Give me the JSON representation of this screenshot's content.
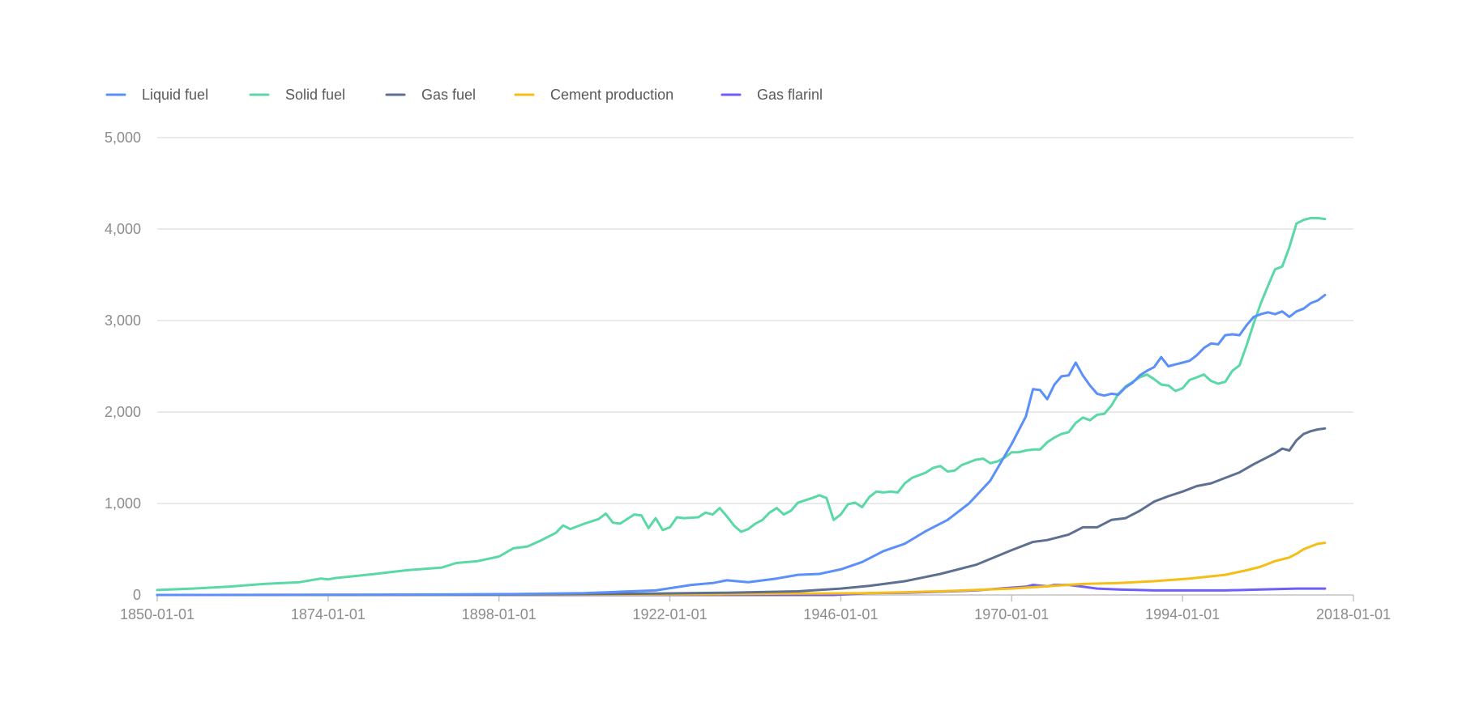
{
  "chart_data": {
    "type": "line",
    "title": "",
    "xlabel": "",
    "ylabel": "",
    "grid": true,
    "legend_position": "top-left",
    "xlim": [
      "1850-01-01",
      "2018-01-01"
    ],
    "ylim": [
      0,
      5000
    ],
    "x_ticks": [
      "1850-01-01",
      "1874-01-01",
      "1898-01-01",
      "1922-01-01",
      "1946-01-01",
      "1970-01-01",
      "1994-01-01",
      "2018-01-01"
    ],
    "y_ticks": [
      0,
      1000,
      2000,
      3000,
      4000,
      5000
    ],
    "y_tick_labels": [
      "0",
      "1,000",
      "2,000",
      "3,000",
      "4,000",
      "5,000"
    ],
    "series": [
      {
        "name": "Liquid fuel",
        "color": "#5b8ff9",
        "points": [
          [
            "1850-01-01",
            0
          ],
          [
            "1870-01-01",
            1
          ],
          [
            "1880-01-01",
            3
          ],
          [
            "1890-01-01",
            5
          ],
          [
            "1900-01-01",
            10
          ],
          [
            "1910-01-01",
            20
          ],
          [
            "1915-01-01",
            35
          ],
          [
            "1920-01-01",
            50
          ],
          [
            "1925-01-01",
            110
          ],
          [
            "1928-01-01",
            130
          ],
          [
            "1930-01-01",
            160
          ],
          [
            "1933-01-01",
            140
          ],
          [
            "1937-01-01",
            180
          ],
          [
            "1940-01-01",
            220
          ],
          [
            "1943-01-01",
            230
          ],
          [
            "1946-01-01",
            280
          ],
          [
            "1949-01-01",
            360
          ],
          [
            "1952-01-01",
            480
          ],
          [
            "1955-01-01",
            560
          ],
          [
            "1958-01-01",
            700
          ],
          [
            "1961-01-01",
            820
          ],
          [
            "1964-01-01",
            1000
          ],
          [
            "1967-01-01",
            1250
          ],
          [
            "1970-01-01",
            1650
          ],
          [
            "1972-01-01",
            1950
          ],
          [
            "1973-01-01",
            2250
          ],
          [
            "1974-01-01",
            2240
          ],
          [
            "1975-01-01",
            2140
          ],
          [
            "1976-01-01",
            2300
          ],
          [
            "1977-01-01",
            2390
          ],
          [
            "1978-01-01",
            2400
          ],
          [
            "1979-01-01",
            2540
          ],
          [
            "1980-01-01",
            2400
          ],
          [
            "1981-01-01",
            2290
          ],
          [
            "1982-01-01",
            2200
          ],
          [
            "1983-01-01",
            2180
          ],
          [
            "1984-01-01",
            2200
          ],
          [
            "1985-01-01",
            2190
          ],
          [
            "1986-01-01",
            2270
          ],
          [
            "1987-01-01",
            2320
          ],
          [
            "1988-01-01",
            2400
          ],
          [
            "1989-01-01",
            2450
          ],
          [
            "1990-01-01",
            2490
          ],
          [
            "1991-01-01",
            2600
          ],
          [
            "1992-01-01",
            2500
          ],
          [
            "1993-01-01",
            2520
          ],
          [
            "1994-01-01",
            2540
          ],
          [
            "1995-01-01",
            2560
          ],
          [
            "1996-01-01",
            2620
          ],
          [
            "1997-01-01",
            2700
          ],
          [
            "1998-01-01",
            2750
          ],
          [
            "1999-01-01",
            2740
          ],
          [
            "2000-01-01",
            2840
          ],
          [
            "2001-01-01",
            2850
          ],
          [
            "2002-01-01",
            2840
          ],
          [
            "2003-01-01",
            2950
          ],
          [
            "2004-01-01",
            3040
          ],
          [
            "2005-01-01",
            3070
          ],
          [
            "2006-01-01",
            3090
          ],
          [
            "2007-01-01",
            3070
          ],
          [
            "2008-01-01",
            3100
          ],
          [
            "2009-01-01",
            3040
          ],
          [
            "2010-01-01",
            3100
          ],
          [
            "2011-01-01",
            3130
          ],
          [
            "2012-01-01",
            3190
          ],
          [
            "2013-01-01",
            3220
          ],
          [
            "2014-01-01",
            3280
          ]
        ]
      },
      {
        "name": "Solid fuel",
        "color": "#5ad8a6",
        "points": [
          [
            "1850-01-01",
            54
          ],
          [
            "1855-01-01",
            70
          ],
          [
            "1860-01-01",
            90
          ],
          [
            "1865-01-01",
            120
          ],
          [
            "1870-01-01",
            140
          ],
          [
            "1873-01-01",
            180
          ],
          [
            "1874-01-01",
            170
          ],
          [
            "1875-01-01",
            185
          ],
          [
            "1880-01-01",
            225
          ],
          [
            "1885-01-01",
            270
          ],
          [
            "1890-01-01",
            300
          ],
          [
            "1892-01-01",
            350
          ],
          [
            "1895-01-01",
            370
          ],
          [
            "1898-01-01",
            420
          ],
          [
            "1900-01-01",
            510
          ],
          [
            "1902-01-01",
            530
          ],
          [
            "1904-01-01",
            600
          ],
          [
            "1906-01-01",
            680
          ],
          [
            "1907-01-01",
            760
          ],
          [
            "1908-01-01",
            720
          ],
          [
            "1910-01-01",
            780
          ],
          [
            "1912-01-01",
            830
          ],
          [
            "1913-01-01",
            890
          ],
          [
            "1914-01-01",
            790
          ],
          [
            "1915-01-01",
            780
          ],
          [
            "1917-01-01",
            880
          ],
          [
            "1918-01-01",
            870
          ],
          [
            "1919-01-01",
            730
          ],
          [
            "1920-01-01",
            840
          ],
          [
            "1921-01-01",
            710
          ],
          [
            "1922-01-01",
            740
          ],
          [
            "1923-01-01",
            850
          ],
          [
            "1924-01-01",
            840
          ],
          [
            "1926-01-01",
            850
          ],
          [
            "1927-01-01",
            900
          ],
          [
            "1928-01-01",
            880
          ],
          [
            "1929-01-01",
            950
          ],
          [
            "1930-01-01",
            860
          ],
          [
            "1931-01-01",
            760
          ],
          [
            "1932-01-01",
            690
          ],
          [
            "1933-01-01",
            720
          ],
          [
            "1934-01-01",
            780
          ],
          [
            "1935-01-01",
            820
          ],
          [
            "1936-01-01",
            900
          ],
          [
            "1937-01-01",
            950
          ],
          [
            "1938-01-01",
            880
          ],
          [
            "1939-01-01",
            920
          ],
          [
            "1940-01-01",
            1010
          ],
          [
            "1942-01-01",
            1060
          ],
          [
            "1943-01-01",
            1090
          ],
          [
            "1944-01-01",
            1060
          ],
          [
            "1945-01-01",
            820
          ],
          [
            "1946-01-01",
            880
          ],
          [
            "1947-01-01",
            990
          ],
          [
            "1948-01-01",
            1010
          ],
          [
            "1949-01-01",
            960
          ],
          [
            "1950-01-01",
            1070
          ],
          [
            "1951-01-01",
            1130
          ],
          [
            "1952-01-01",
            1120
          ],
          [
            "1953-01-01",
            1130
          ],
          [
            "1954-01-01",
            1120
          ],
          [
            "1955-01-01",
            1220
          ],
          [
            "1956-01-01",
            1280
          ],
          [
            "1957-01-01",
            1310
          ],
          [
            "1958-01-01",
            1340
          ],
          [
            "1959-01-01",
            1390
          ],
          [
            "1960-01-01",
            1410
          ],
          [
            "1961-01-01",
            1350
          ],
          [
            "1962-01-01",
            1360
          ],
          [
            "1963-01-01",
            1420
          ],
          [
            "1964-01-01",
            1450
          ],
          [
            "1965-01-01",
            1480
          ],
          [
            "1966-01-01",
            1490
          ],
          [
            "1967-01-01",
            1440
          ],
          [
            "1968-01-01",
            1460
          ],
          [
            "1969-01-01",
            1500
          ],
          [
            "1970-01-01",
            1560
          ],
          [
            "1971-01-01",
            1560
          ],
          [
            "1972-01-01",
            1580
          ],
          [
            "1973-01-01",
            1590
          ],
          [
            "1974-01-01",
            1590
          ],
          [
            "1975-01-01",
            1670
          ],
          [
            "1976-01-01",
            1720
          ],
          [
            "1977-01-01",
            1760
          ],
          [
            "1978-01-01",
            1780
          ],
          [
            "1979-01-01",
            1880
          ],
          [
            "1980-01-01",
            1940
          ],
          [
            "1981-01-01",
            1910
          ],
          [
            "1982-01-01",
            1970
          ],
          [
            "1983-01-01",
            1980
          ],
          [
            "1984-01-01",
            2070
          ],
          [
            "1985-01-01",
            2200
          ],
          [
            "1986-01-01",
            2280
          ],
          [
            "1987-01-01",
            2330
          ],
          [
            "1988-01-01",
            2380
          ],
          [
            "1989-01-01",
            2410
          ],
          [
            "1990-01-01",
            2360
          ],
          [
            "1991-01-01",
            2300
          ],
          [
            "1992-01-01",
            2290
          ],
          [
            "1993-01-01",
            2230
          ],
          [
            "1994-01-01",
            2260
          ],
          [
            "1995-01-01",
            2350
          ],
          [
            "1996-01-01",
            2380
          ],
          [
            "1997-01-01",
            2410
          ],
          [
            "1998-01-01",
            2340
          ],
          [
            "1999-01-01",
            2310
          ],
          [
            "2000-01-01",
            2330
          ],
          [
            "2001-01-01",
            2450
          ],
          [
            "2002-01-01",
            2510
          ],
          [
            "2003-01-01",
            2730
          ],
          [
            "2004-01-01",
            2970
          ],
          [
            "2005-01-01",
            3190
          ],
          [
            "2006-01-01",
            3380
          ],
          [
            "2007-01-01",
            3560
          ],
          [
            "2008-01-01",
            3590
          ],
          [
            "2009-01-01",
            3800
          ],
          [
            "2010-01-01",
            4060
          ],
          [
            "2011-01-01",
            4100
          ],
          [
            "2012-01-01",
            4120
          ],
          [
            "2013-01-01",
            4120
          ],
          [
            "2014-01-01",
            4110
          ]
        ]
      },
      {
        "name": "Gas fuel",
        "color": "#5d7092",
        "points": [
          [
            "1850-01-01",
            0
          ],
          [
            "1880-01-01",
            1
          ],
          [
            "1900-01-01",
            5
          ],
          [
            "1920-01-01",
            15
          ],
          [
            "1930-01-01",
            25
          ],
          [
            "1940-01-01",
            40
          ],
          [
            "1946-01-01",
            70
          ],
          [
            "1950-01-01",
            100
          ],
          [
            "1955-01-01",
            150
          ],
          [
            "1960-01-01",
            230
          ],
          [
            "1965-01-01",
            330
          ],
          [
            "1970-01-01",
            490
          ],
          [
            "1973-01-01",
            580
          ],
          [
            "1975-01-01",
            600
          ],
          [
            "1978-01-01",
            660
          ],
          [
            "1980-01-01",
            740
          ],
          [
            "1982-01-01",
            740
          ],
          [
            "1984-01-01",
            820
          ],
          [
            "1986-01-01",
            840
          ],
          [
            "1988-01-01",
            920
          ],
          [
            "1990-01-01",
            1020
          ],
          [
            "1992-01-01",
            1080
          ],
          [
            "1994-01-01",
            1130
          ],
          [
            "1996-01-01",
            1190
          ],
          [
            "1998-01-01",
            1220
          ],
          [
            "2000-01-01",
            1280
          ],
          [
            "2002-01-01",
            1340
          ],
          [
            "2004-01-01",
            1430
          ],
          [
            "2006-01-01",
            1510
          ],
          [
            "2007-01-01",
            1550
          ],
          [
            "2008-01-01",
            1600
          ],
          [
            "2009-01-01",
            1580
          ],
          [
            "2010-01-01",
            1690
          ],
          [
            "2011-01-01",
            1760
          ],
          [
            "2012-01-01",
            1790
          ],
          [
            "2013-01-01",
            1810
          ],
          [
            "2014-01-01",
            1820
          ]
        ]
      },
      {
        "name": "Cement production",
        "color": "#f6bd16",
        "points": [
          [
            "1850-01-01",
            0
          ],
          [
            "1920-01-01",
            5
          ],
          [
            "1930-01-01",
            10
          ],
          [
            "1940-01-01",
            15
          ],
          [
            "1950-01-01",
            20
          ],
          [
            "1960-01-01",
            40
          ],
          [
            "1970-01-01",
            70
          ],
          [
            "1975-01-01",
            95
          ],
          [
            "1980-01-01",
            120
          ],
          [
            "1985-01-01",
            130
          ],
          [
            "1990-01-01",
            150
          ],
          [
            "1995-01-01",
            180
          ],
          [
            "2000-01-01",
            220
          ],
          [
            "2003-01-01",
            270
          ],
          [
            "2005-01-01",
            310
          ],
          [
            "2007-01-01",
            370
          ],
          [
            "2009-01-01",
            410
          ],
          [
            "2010-01-01",
            450
          ],
          [
            "2011-01-01",
            500
          ],
          [
            "2012-01-01",
            530
          ],
          [
            "2013-01-01",
            560
          ],
          [
            "2014-01-01",
            570
          ]
        ]
      },
      {
        "name": "Gas flarinl",
        "color": "#6f5ef9",
        "points": [
          [
            "1850-01-01",
            0
          ],
          [
            "1945-01-01",
            0
          ],
          [
            "1950-01-01",
            20
          ],
          [
            "1955-01-01",
            25
          ],
          [
            "1960-01-01",
            35
          ],
          [
            "1965-01-01",
            50
          ],
          [
            "1970-01-01",
            80
          ],
          [
            "1972-01-01",
            90
          ],
          [
            "1973-01-01",
            110
          ],
          [
            "1975-01-01",
            95
          ],
          [
            "1976-01-01",
            110
          ],
          [
            "1978-01-01",
            110
          ],
          [
            "1980-01-01",
            90
          ],
          [
            "1982-01-01",
            70
          ],
          [
            "1985-01-01",
            60
          ],
          [
            "1990-01-01",
            50
          ],
          [
            "1995-01-01",
            50
          ],
          [
            "2000-01-01",
            50
          ],
          [
            "2005-01-01",
            60
          ],
          [
            "2010-01-01",
            70
          ],
          [
            "2014-01-01",
            70
          ]
        ]
      }
    ]
  }
}
